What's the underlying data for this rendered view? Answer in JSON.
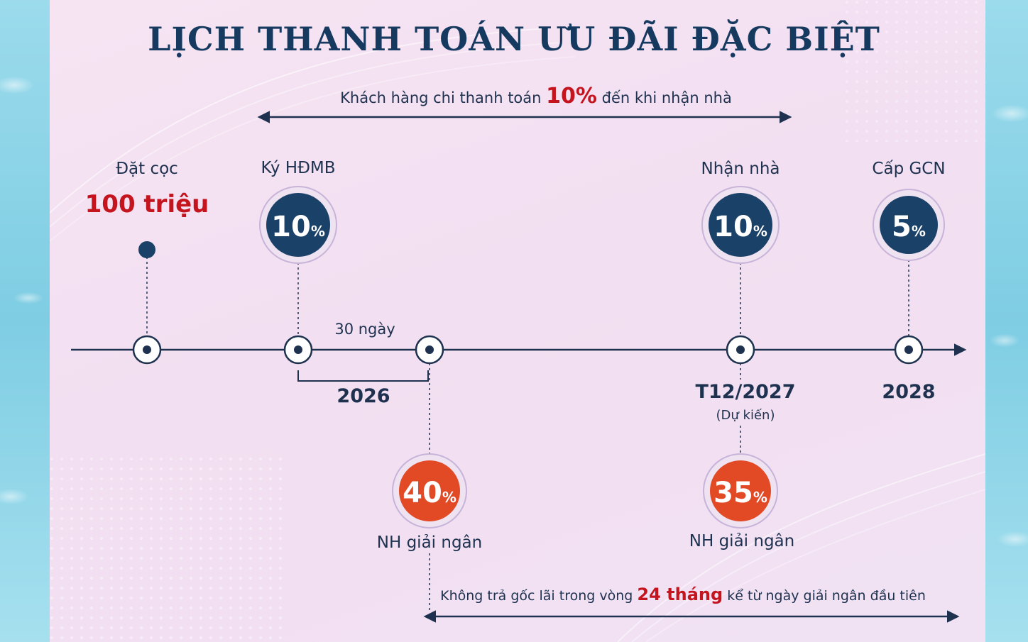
{
  "title": "LỊCH THANH TOÁN ƯU ĐÃI ĐẶC BIỆT",
  "top_note": {
    "before": "Khách hàng chi thanh toán",
    "highlight": "10%",
    "after": "đến khi nhận nhà"
  },
  "bottom_note": {
    "before": "Không trả gốc lãi trong vòng",
    "highlight": "24 tháng",
    "after": "kể từ ngày giải ngân đầu tiên"
  },
  "milestones": {
    "deposit": {
      "label": "Đặt cọc",
      "amount": "100 triệu"
    },
    "contract": {
      "label": "Ký HĐMB",
      "value": "10",
      "unit": "%"
    },
    "handover": {
      "label": "Nhận nhà",
      "value": "10",
      "unit": "%"
    },
    "certificate": {
      "label": "Cấp GCN",
      "value": "5",
      "unit": "%"
    },
    "loan1": {
      "label": "NH giải ngân",
      "value": "40",
      "unit": "%"
    },
    "loan2": {
      "label": "NH giải ngân",
      "value": "35",
      "unit": "%"
    }
  },
  "dates": {
    "interval": "30 ngày",
    "year1": "2026",
    "handover_date": "T12/2027",
    "handover_note": "(Dự kiến)",
    "year2": "2028"
  },
  "colors": {
    "navy": "#1a4168",
    "orange": "#e24a25",
    "red": "#c4151f",
    "ring": "#c8b3d9"
  }
}
